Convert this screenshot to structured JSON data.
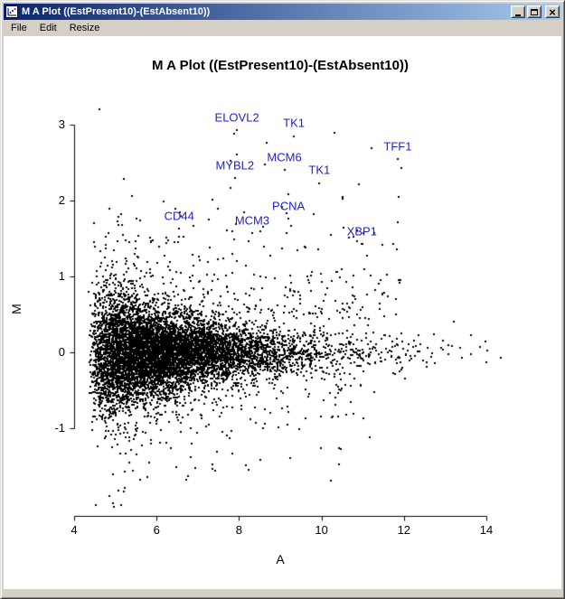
{
  "window": {
    "title": "M A Plot ((EstPresent10)-(EstAbsent10))",
    "buttons": {
      "minimize": "minimize",
      "maximize": "maximize",
      "close_glyph": "×"
    }
  },
  "menu": {
    "items": [
      "File",
      "Edit",
      "Resize"
    ]
  },
  "colors": {
    "titlebar_left": "#0a246a",
    "titlebar_right": "#a6caf0",
    "chrome": "#d4d0c8",
    "plot_bg": "#ffffff",
    "axis": "#000000"
  },
  "chart_data": {
    "type": "scatter",
    "title": "M A Plot ((EstPresent10)-(EstAbsent10))",
    "xlabel": "A",
    "ylabel": "M",
    "xlim": [
      4.3,
      14.65
    ],
    "ylim": [
      -2.15,
      3.35
    ],
    "xticks": [
      4,
      6,
      8,
      10,
      12,
      14
    ],
    "yticks": [
      -1,
      0,
      1,
      2,
      3
    ],
    "grid": false,
    "legend": null,
    "point_color": "#000000",
    "label_color": "#2222cc",
    "labeled_genes": [
      {
        "name": "ELOVL2",
        "a": 7.95,
        "m": 3.1
      },
      {
        "name": "TK1",
        "a": 9.33,
        "m": 3.02
      },
      {
        "name": "TFF1",
        "a": 11.85,
        "m": 2.72
      },
      {
        "name": "MCM6",
        "a": 9.1,
        "m": 2.57
      },
      {
        "name": "MYBL2",
        "a": 7.9,
        "m": 2.47
      },
      {
        "name": "TK1",
        "a": 9.95,
        "m": 2.4
      },
      {
        "name": "PCNA",
        "a": 9.2,
        "m": 1.93
      },
      {
        "name": "CD44",
        "a": 6.55,
        "m": 1.8
      },
      {
        "name": "MCM3",
        "a": 8.32,
        "m": 1.74
      },
      {
        "name": "XBP1",
        "a": 10.98,
        "m": 1.6
      }
    ],
    "cloud": {
      "seed": 1337,
      "n_main": 8200,
      "a_base": 4.35,
      "a_scale": 1.05,
      "a_max": 14.65,
      "sigma_base": 0.13,
      "sigma_amp": 0.33,
      "sigma_decay": 2.2,
      "tail_frac": 0.07,
      "tail_mult": 2.6,
      "upper_outliers": {
        "n": 260,
        "a_min": 5.2,
        "a_span": 6.8,
        "m_base": 0.45,
        "m_scale": 0.55
      },
      "lower_outliers": {
        "n": 110,
        "a_min": 4.8,
        "a_span": 6.5,
        "m_base": -0.4,
        "m_scale": 0.4
      }
    }
  }
}
